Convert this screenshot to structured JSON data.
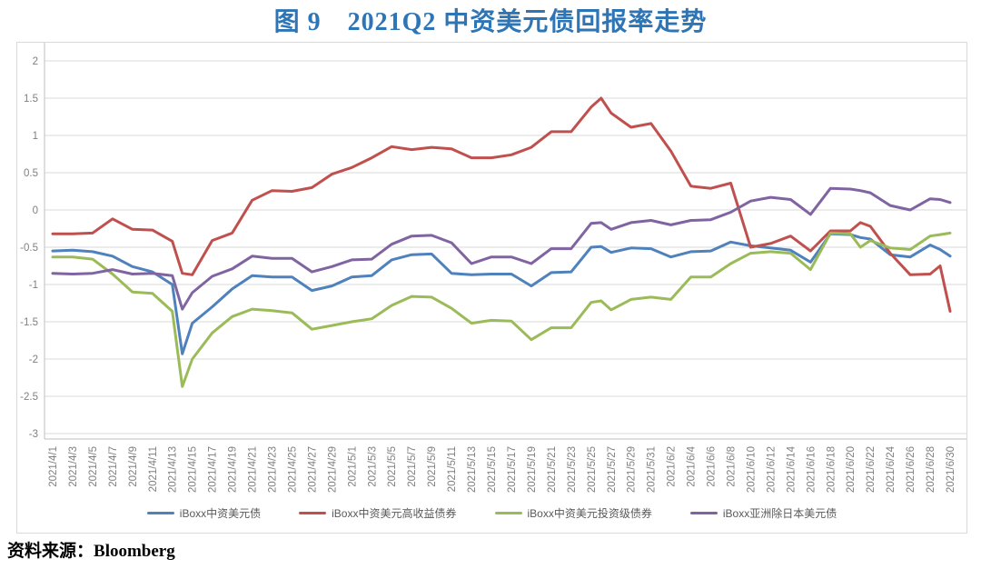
{
  "page": {
    "title": "图 9　2021Q2 中资美元债回报率走势",
    "source_prefix": "资料来源：",
    "source_name": "Bloomberg"
  },
  "colors": {
    "title_text": "#2E75B6",
    "gridline": "#D9D9D9",
    "chart_border": "#D9D9D9",
    "axis_line": "#BFBFBF",
    "tick_text": "#808080",
    "legend_text": "#595959",
    "background": "#FFFFFF"
  },
  "chart_data": {
    "type": "line",
    "title": "图 9　2021Q2 中资美元债回报率走势",
    "xlabel": "",
    "ylabel": "",
    "ylim": [
      -3,
      2
    ],
    "y_ticks": [
      2,
      1.5,
      1,
      0.5,
      0,
      -0.5,
      -1,
      -1.5,
      -2,
      -2.5,
      -3
    ],
    "y_tick_labels": [
      "2",
      "1.5",
      "1",
      "0.5",
      "0",
      "-0.5",
      "-1",
      "-1.5",
      "-2",
      "-2.5",
      "-3"
    ],
    "grid": true,
    "legend_position": "bottom",
    "x_tick_labels": [
      "2021/4/1",
      "2021/4/3",
      "2021/4/5",
      "2021/4/7",
      "2021/4/9",
      "2021/4/11",
      "2021/4/13",
      "2021/4/15",
      "2021/4/17",
      "2021/4/19",
      "2021/4/21",
      "2021/4/23",
      "2021/4/25",
      "2021/4/27",
      "2021/4/29",
      "2021/5/1",
      "2021/5/3",
      "2021/5/5",
      "2021/5/7",
      "2021/5/9",
      "2021/5/11",
      "2021/5/13",
      "2021/5/15",
      "2021/5/17",
      "2021/5/19",
      "2021/5/21",
      "2021/5/23",
      "2021/5/25",
      "2021/5/27",
      "2021/5/29",
      "2021/5/31",
      "2021/6/2",
      "2021/6/4",
      "2021/6/6",
      "2021/6/8",
      "2021/6/10",
      "2021/6/12",
      "2021/6/14",
      "2021/6/16",
      "2021/6/18",
      "2021/6/20",
      "2021/6/22",
      "2021/6/24",
      "2021/6/26",
      "2021/6/28",
      "2021/6/30"
    ],
    "x": [
      "2021/4/1",
      "2021/4/3",
      "2021/4/5",
      "2021/4/7",
      "2021/4/9",
      "2021/4/11",
      "2021/4/13",
      "2021/4/14",
      "2021/4/15",
      "2021/4/17",
      "2021/4/19",
      "2021/4/21",
      "2021/4/23",
      "2021/4/25",
      "2021/4/27",
      "2021/4/29",
      "2021/5/1",
      "2021/5/3",
      "2021/5/5",
      "2021/5/7",
      "2021/5/9",
      "2021/5/11",
      "2021/5/13",
      "2021/5/15",
      "2021/5/17",
      "2021/5/19",
      "2021/5/21",
      "2021/5/23",
      "2021/5/25",
      "2021/5/26",
      "2021/5/27",
      "2021/5/29",
      "2021/5/31",
      "2021/6/2",
      "2021/6/4",
      "2021/6/6",
      "2021/6/8",
      "2021/6/10",
      "2021/6/12",
      "2021/6/14",
      "2021/6/16",
      "2021/6/18",
      "2021/6/20",
      "2021/6/21",
      "2021/6/22",
      "2021/6/24",
      "2021/6/26",
      "2021/6/28",
      "2021/6/29",
      "2021/6/30"
    ],
    "series": [
      {
        "name": "iBoxx中资美元债",
        "color": "#4F81BD",
        "values": [
          -0.55,
          -0.54,
          -0.56,
          -0.62,
          -0.76,
          -0.83,
          -1.0,
          -1.93,
          -1.52,
          -1.3,
          -1.06,
          -0.88,
          -0.9,
          -0.9,
          -1.08,
          -1.02,
          -0.9,
          -0.88,
          -0.67,
          -0.6,
          -0.59,
          -0.85,
          -0.87,
          -0.86,
          -0.86,
          -1.02,
          -0.84,
          -0.83,
          -0.5,
          -0.49,
          -0.57,
          -0.51,
          -0.52,
          -0.63,
          -0.56,
          -0.55,
          -0.43,
          -0.48,
          -0.51,
          -0.54,
          -0.7,
          -0.32,
          -0.33,
          -0.37,
          -0.39,
          -0.6,
          -0.63,
          -0.47,
          -0.53,
          -0.62
        ]
      },
      {
        "name": "iBoxx中资美元高收益债券",
        "color": "#C0504D",
        "values": [
          -0.32,
          -0.32,
          -0.31,
          -0.12,
          -0.26,
          -0.27,
          -0.42,
          -0.85,
          -0.87,
          -0.41,
          -0.31,
          0.13,
          0.26,
          0.25,
          0.3,
          0.48,
          0.57,
          0.7,
          0.85,
          0.81,
          0.84,
          0.82,
          0.7,
          0.7,
          0.74,
          0.84,
          1.05,
          1.05,
          1.38,
          1.5,
          1.3,
          1.11,
          1.16,
          0.79,
          0.32,
          0.29,
          0.36,
          -0.5,
          -0.45,
          -0.35,
          -0.55,
          -0.28,
          -0.28,
          -0.17,
          -0.22,
          -0.58,
          -0.87,
          -0.86,
          -0.75,
          -1.36
        ]
      },
      {
        "name": "iBoxx中资美元投资级债券",
        "color": "#9BBB59",
        "values": [
          -0.63,
          -0.63,
          -0.66,
          -0.86,
          -1.1,
          -1.12,
          -1.36,
          -2.37,
          -2.0,
          -1.65,
          -1.43,
          -1.33,
          -1.35,
          -1.38,
          -1.6,
          -1.55,
          -1.5,
          -1.46,
          -1.28,
          -1.16,
          -1.17,
          -1.32,
          -1.52,
          -1.48,
          -1.49,
          -1.74,
          -1.58,
          -1.58,
          -1.24,
          -1.22,
          -1.34,
          -1.2,
          -1.17,
          -1.2,
          -0.9,
          -0.9,
          -0.72,
          -0.58,
          -0.56,
          -0.58,
          -0.8,
          -0.31,
          -0.32,
          -0.5,
          -0.41,
          -0.51,
          -0.53,
          -0.35,
          -0.33,
          -0.31
        ]
      },
      {
        "name": "iBoxx亚洲除日本美元债",
        "color": "#8064A2",
        "values": [
          -0.85,
          -0.86,
          -0.85,
          -0.8,
          -0.86,
          -0.85,
          -0.88,
          -1.33,
          -1.11,
          -0.89,
          -0.79,
          -0.62,
          -0.65,
          -0.65,
          -0.83,
          -0.76,
          -0.67,
          -0.66,
          -0.46,
          -0.35,
          -0.34,
          -0.44,
          -0.72,
          -0.63,
          -0.63,
          -0.72,
          -0.52,
          -0.52,
          -0.18,
          -0.17,
          -0.26,
          -0.17,
          -0.14,
          -0.2,
          -0.14,
          -0.13,
          -0.03,
          0.12,
          0.17,
          0.14,
          -0.06,
          0.29,
          0.28,
          0.26,
          0.23,
          0.06,
          0.0,
          0.15,
          0.14,
          0.1
        ]
      }
    ]
  }
}
